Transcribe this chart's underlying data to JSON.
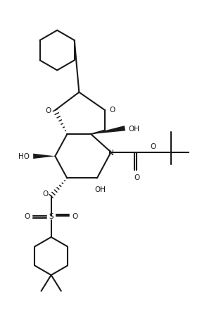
{
  "background_color": "#ffffff",
  "line_color": "#1a1a1a",
  "line_width": 1.5,
  "figure_size": [
    2.87,
    4.56
  ],
  "dpi": 100,
  "xlim": [
    0,
    10
  ],
  "ylim": [
    0,
    16
  ]
}
